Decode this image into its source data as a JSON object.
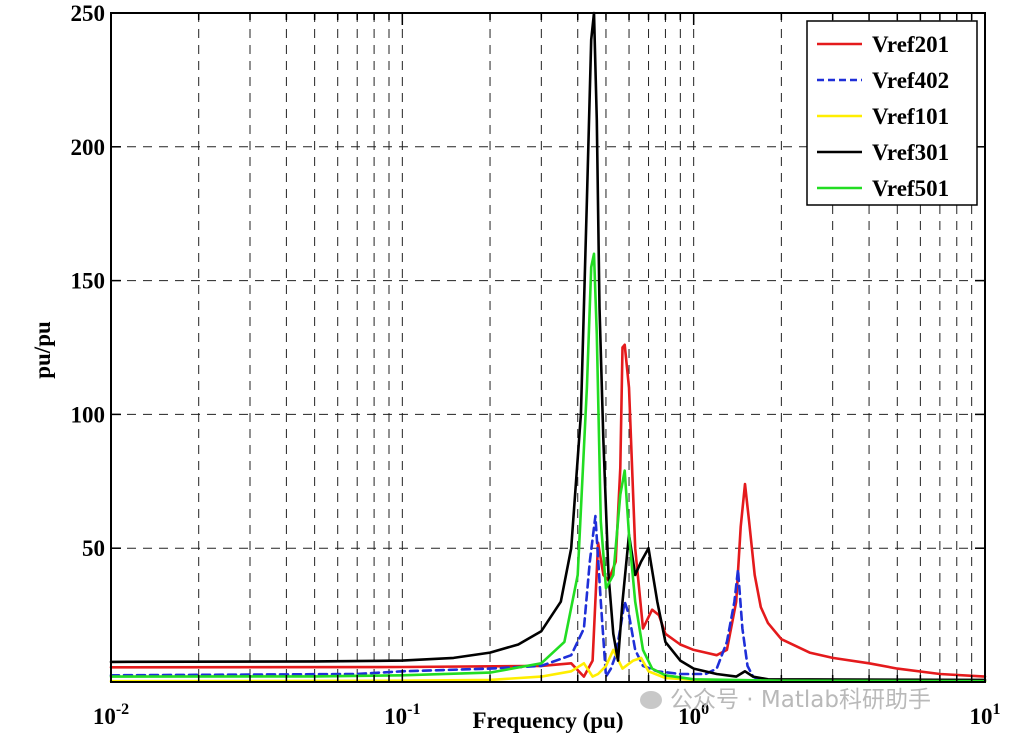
{
  "chart_data": {
    "type": "line",
    "xscale": "log",
    "xlim": [
      0.01,
      10
    ],
    "ylim": [
      0,
      250
    ],
    "xlabel": "Frequency (pu)",
    "ylabel": "pu/pu",
    "yticks": [
      50,
      100,
      150,
      200,
      250
    ],
    "xtick_labels": [
      {
        "base": "10",
        "exp": "-2"
      },
      {
        "base": "10",
        "exp": "-1"
      },
      {
        "base": "10",
        "exp": "0"
      },
      {
        "base": "10",
        "exp": "1"
      }
    ],
    "grid": true,
    "legend_position": "top-right",
    "series": [
      {
        "name": "Vref201",
        "color": "#e41a1c",
        "dash": "solid",
        "x": [
          0.01,
          0.1,
          0.3,
          0.38,
          0.42,
          0.45,
          0.47,
          0.49,
          0.51,
          0.54,
          0.56,
          0.57,
          0.58,
          0.6,
          0.63,
          0.67,
          0.72,
          0.76,
          0.8,
          0.9,
          1.0,
          1.1,
          1.2,
          1.3,
          1.4,
          1.45,
          1.5,
          1.55,
          1.62,
          1.7,
          1.8,
          2.0,
          2.5,
          3.0,
          4.0,
          5.0,
          7.0,
          10.0
        ],
        "y": [
          5.5,
          5.6,
          6,
          7,
          2,
          8,
          52,
          40,
          38,
          45,
          80,
          125,
          126,
          110,
          50,
          20,
          27,
          25,
          18,
          14,
          12,
          11,
          10,
          12,
          30,
          58,
          74,
          60,
          40,
          28,
          22,
          16,
          11,
          9,
          7,
          5,
          3,
          2
        ]
      },
      {
        "name": "Vref402",
        "color": "#1f2fd8",
        "dash": "dashed",
        "x": [
          0.01,
          0.07,
          0.1,
          0.2,
          0.3,
          0.38,
          0.42,
          0.44,
          0.46,
          0.48,
          0.5,
          0.52,
          0.54,
          0.56,
          0.58,
          0.6,
          0.63,
          0.67,
          0.75,
          0.9,
          1.1,
          1.2,
          1.3,
          1.38,
          1.42,
          1.47,
          1.53,
          1.6,
          1.7,
          2.0
        ],
        "y": [
          2.5,
          3,
          4,
          5,
          6,
          10,
          20,
          45,
          62,
          30,
          2,
          5,
          10,
          20,
          30,
          25,
          12,
          6,
          4,
          3,
          3,
          5,
          15,
          30,
          42,
          20,
          6,
          2,
          0.5,
          0.3
        ]
      },
      {
        "name": "Vref101",
        "color": "#ffee00",
        "dash": "solid",
        "x": [
          0.01,
          0.05,
          0.1,
          0.2,
          0.3,
          0.38,
          0.42,
          0.45,
          0.47,
          0.5,
          0.53,
          0.57,
          0.62,
          0.66,
          0.7,
          0.8,
          1.0,
          2.0,
          10.0
        ],
        "y": [
          0.3,
          0.4,
          0.5,
          0.8,
          2,
          4,
          7,
          2,
          3,
          6,
          12,
          5,
          8,
          9,
          4,
          1.5,
          0.8,
          0.3,
          0.2
        ]
      },
      {
        "name": "Vref301",
        "color": "#000000",
        "dash": "solid",
        "x": [
          0.01,
          0.05,
          0.1,
          0.15,
          0.2,
          0.25,
          0.3,
          0.35,
          0.38,
          0.41,
          0.43,
          0.445,
          0.455,
          0.465,
          0.475,
          0.49,
          0.51,
          0.53,
          0.55,
          0.57,
          0.6,
          0.63,
          0.66,
          0.7,
          0.75,
          0.8,
          0.9,
          1.0,
          1.2,
          1.4,
          1.5,
          1.6,
          1.8,
          10.0
        ],
        "y": [
          7.5,
          7.7,
          8,
          9,
          11,
          14,
          19,
          30,
          50,
          100,
          180,
          240,
          250,
          210,
          140,
          90,
          40,
          18,
          8,
          30,
          55,
          40,
          45,
          50,
          30,
          15,
          8,
          5,
          3,
          2,
          4,
          2,
          1,
          0.8
        ]
      },
      {
        "name": "Vref501",
        "color": "#22dd22",
        "dash": "solid",
        "x": [
          0.01,
          0.05,
          0.1,
          0.2,
          0.3,
          0.36,
          0.4,
          0.43,
          0.445,
          0.455,
          0.465,
          0.48,
          0.5,
          0.53,
          0.56,
          0.58,
          0.6,
          0.63,
          0.67,
          0.72,
          0.8,
          1.0,
          2.0,
          10.0
        ],
        "y": [
          2,
          2.1,
          2.5,
          3.5,
          7,
          15,
          40,
          110,
          155,
          160,
          130,
          60,
          35,
          40,
          70,
          79,
          55,
          30,
          12,
          5,
          2.5,
          1,
          0.5,
          0.3
        ]
      }
    ]
  },
  "watermark": {
    "text": "公众号 · Matlab科研助手"
  }
}
